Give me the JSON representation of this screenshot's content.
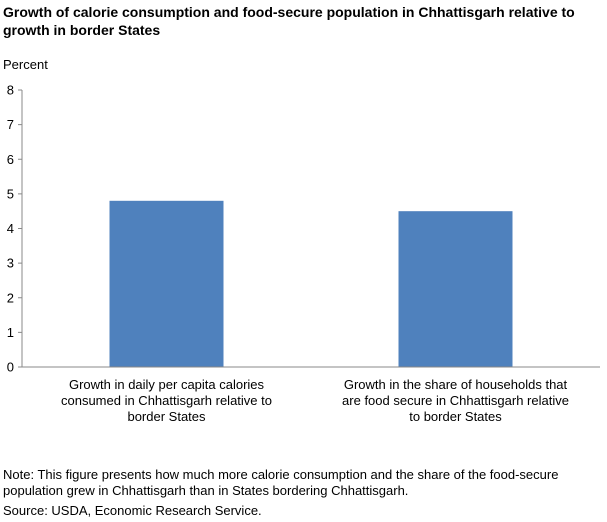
{
  "chart_data": {
    "type": "bar",
    "title": "Growth of calorie consumption and food-secure population in Chhattisgarh relative to growth in border States",
    "ylabel": "Percent",
    "xlabel": "",
    "ylim": [
      0,
      8
    ],
    "yticks": [
      "0",
      "1",
      "2",
      "3",
      "4",
      "5",
      "6",
      "7",
      "8"
    ],
    "categories": [
      "Growth in daily per capita calories consumed in Chhattisgarh relative to border States",
      "Growth in the share of  households that are food secure in Chhattisgarh relative to border States"
    ],
    "values": [
      4.8,
      4.5
    ],
    "bar_color": "#4f81bd",
    "grid": false,
    "legend": "none"
  },
  "footer": {
    "note": "Note:  This figure presents how much more calorie consumption and the share of the food-secure population grew in Chhattisgarh than in States bordering Chhattisgarh.",
    "source": "Source:  USDA, Economic Research Service."
  }
}
